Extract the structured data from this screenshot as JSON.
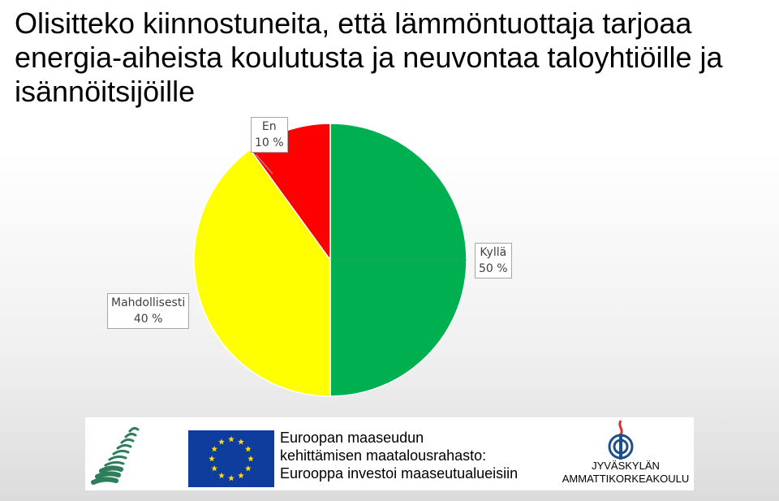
{
  "title_lines": [
    "Olisitteko kiinnostuneita, että lämmöntuottaja tarjoaa",
    "energia-aiheista koulutusta ja neuvontaa taloyhtiöille ja",
    "isännöitsijöille"
  ],
  "chart_data": {
    "type": "pie",
    "start_angle_deg": 0,
    "direction": "clockwise",
    "slices": [
      {
        "label": "Kyllä",
        "value": 50,
        "value_label": "50 %",
        "color": "#00b050"
      },
      {
        "label": "Mahdollisesti",
        "value": 40,
        "value_label": "40 %",
        "color": "#ffff00"
      },
      {
        "label": "En",
        "value": 10,
        "value_label": "10 %",
        "color": "#ff0000"
      }
    ]
  },
  "footer": {
    "eu_text_lines": [
      "Euroopan maaseudun",
      "kehittämisen maatalousrahasto:",
      "Eurooppa investoi maaseutualueisiin"
    ],
    "jamk_lines": [
      "JYVÄSKYLÄN",
      "AMMATTIKORKEAKOULU"
    ],
    "colors": {
      "eu_blue": "#0f3d9e",
      "eu_star": "#ffdd00",
      "leaf_green": "#2e7d5b",
      "jamk_blue": "#1f4e8c",
      "jamk_red": "#d9312b"
    }
  }
}
